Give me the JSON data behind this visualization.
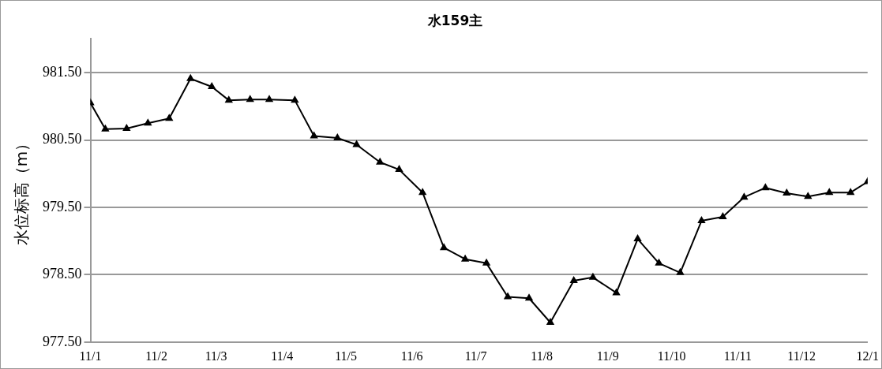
{
  "chart_data": {
    "type": "line",
    "title": "水159主",
    "ylabel": "水位标高（m）",
    "x": [
      "2011-01-01",
      "2011-01-08",
      "2011-01-18",
      "2011-01-28",
      "2011-02-07",
      "2011-02-17",
      "2011-02-27",
      "2011-03-07",
      "2011-03-17",
      "2011-03-26",
      "2011-04-07",
      "2011-04-16",
      "2011-04-27",
      "2011-05-06",
      "2011-05-17",
      "2011-05-26",
      "2011-06-06",
      "2011-06-16",
      "2011-06-26",
      "2011-07-06",
      "2011-07-16",
      "2011-07-26",
      "2011-08-05",
      "2011-08-16",
      "2011-08-25",
      "2011-09-05",
      "2011-09-15",
      "2011-09-25",
      "2011-10-05",
      "2011-10-15",
      "2011-10-25",
      "2011-11-04",
      "2011-11-14",
      "2011-11-24",
      "2011-12-04",
      "2011-12-14",
      "2011-12-24",
      "2012-01-01"
    ],
    "series": [
      {
        "color": "#000000",
        "values": [
          981.05,
          980.66,
          980.67,
          980.75,
          980.82,
          981.41,
          981.29,
          981.09,
          981.1,
          981.1,
          981.09,
          980.56,
          980.53,
          980.43,
          980.17,
          980.06,
          979.72,
          978.9,
          978.73,
          978.67,
          978.17,
          978.15,
          977.79,
          978.41,
          978.46,
          978.23,
          979.03,
          978.67,
          978.53,
          979.3,
          979.36,
          979.65,
          979.79,
          979.71,
          979.66,
          979.72,
          979.72,
          979.88
        ]
      }
    ],
    "xlim": [
      "2011-01-01",
      "2012-01-01"
    ],
    "xticks": [
      {
        "value": "2011-01-01",
        "label": "11/1"
      },
      {
        "value": "2011-02-01",
        "label": "11/2"
      },
      {
        "value": "2011-03-01",
        "label": "11/3"
      },
      {
        "value": "2011-04-01",
        "label": "11/4"
      },
      {
        "value": "2011-05-01",
        "label": "11/5"
      },
      {
        "value": "2011-06-01",
        "label": "11/6"
      },
      {
        "value": "2011-07-01",
        "label": "11/7"
      },
      {
        "value": "2011-08-01",
        "label": "11/8"
      },
      {
        "value": "2011-09-01",
        "label": "11/9"
      },
      {
        "value": "2011-10-01",
        "label": "11/10"
      },
      {
        "value": "2011-11-01",
        "label": "11/11"
      },
      {
        "value": "2011-12-01",
        "label": "11/12"
      },
      {
        "value": "2012-01-01",
        "label": "12/1"
      }
    ],
    "ylim": [
      977.5,
      982
    ],
    "yticks": [
      {
        "value": 977.5,
        "label": "977.50"
      },
      {
        "value": 978.5,
        "label": "978.50"
      },
      {
        "value": 979.5,
        "label": "979.50"
      },
      {
        "value": 980.5,
        "label": "980.50"
      },
      {
        "value": 981.5,
        "label": "981.50"
      }
    ],
    "grid": "y",
    "marker": "triangle",
    "line_style": "solid",
    "legend": false
  }
}
